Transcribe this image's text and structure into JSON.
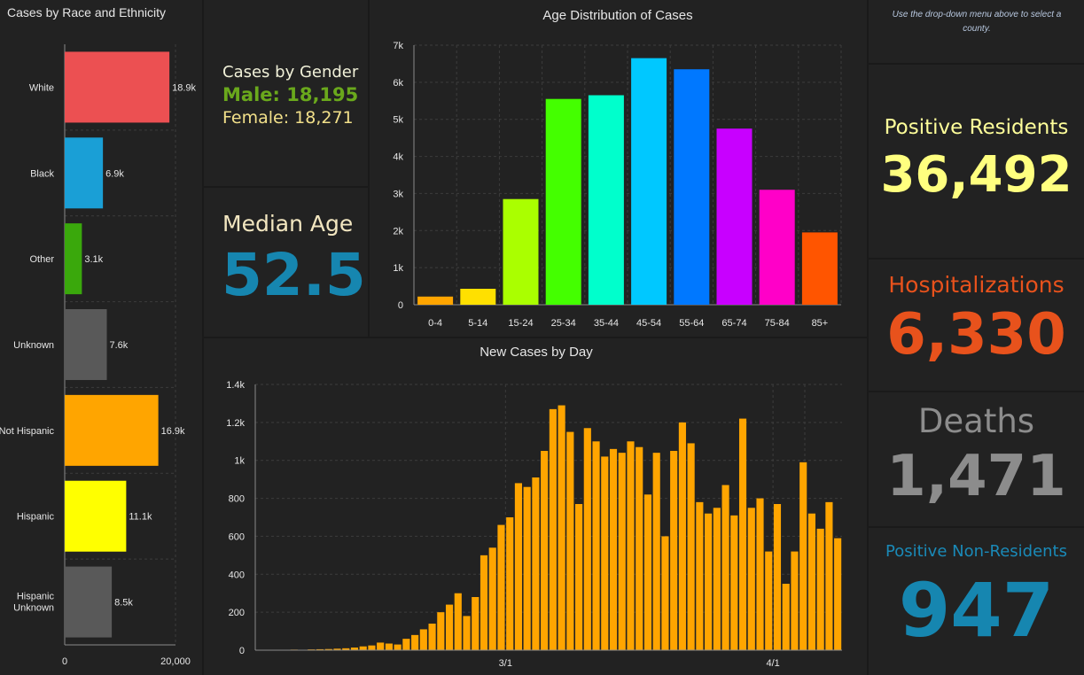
{
  "race_chart": {
    "title": "Cases by Race and Ethnicity",
    "type": "bar",
    "categories": [
      "White",
      "Black",
      "Other",
      "Unknown",
      "Not Hispanic",
      "Hispanic",
      "Hispanic Unknown"
    ],
    "values": [
      18900,
      6900,
      3100,
      7600,
      16900,
      11100,
      8500
    ],
    "value_labels": [
      "18.9k",
      "6.9k",
      "3.1k",
      "7.6k",
      "16.9k",
      "11.1k",
      "8.5k"
    ],
    "colors": [
      "#ec5052",
      "#1a9fd6",
      "#3aa80c",
      "#595959",
      "#ffa500",
      "#ffff00",
      "#595959"
    ],
    "xlim": [
      0,
      20000
    ],
    "x_ticks": [
      "0",
      "20,000"
    ]
  },
  "gender": {
    "title": "Cases by Gender",
    "male": "Male: 18,195",
    "female": "Female: 18,271"
  },
  "median_age": {
    "title": "Median Age",
    "value": "52.5"
  },
  "age_chart": {
    "title": "Age Distribution of Cases",
    "type": "bar",
    "categories": [
      "0-4",
      "5-14",
      "15-24",
      "25-34",
      "35-44",
      "45-54",
      "55-64",
      "65-74",
      "75-84",
      "85+"
    ],
    "values": [
      220,
      430,
      2850,
      5550,
      5650,
      6650,
      6350,
      4750,
      3100,
      1950
    ],
    "colors": [
      "#ffa500",
      "#ffe000",
      "#aaff00",
      "#44ff00",
      "#00ffcc",
      "#00c8ff",
      "#0078ff",
      "#c800ff",
      "#ff00c8",
      "#ff5500"
    ],
    "ylim": [
      0,
      7000
    ],
    "y_ticks": [
      "0",
      "1k",
      "2k",
      "3k",
      "4k",
      "5k",
      "6k",
      "7k"
    ]
  },
  "daily_chart": {
    "title": "New Cases by Day",
    "type": "bar",
    "color": "#ffa500",
    "values": [
      2,
      1,
      2,
      1,
      3,
      2,
      4,
      5,
      6,
      8,
      10,
      14,
      20,
      25,
      40,
      35,
      30,
      60,
      80,
      110,
      140,
      200,
      240,
      300,
      180,
      280,
      500,
      540,
      660,
      700,
      880,
      860,
      910,
      1050,
      1270,
      1290,
      1150,
      770,
      1170,
      1100,
      1020,
      1060,
      1040,
      1100,
      1070,
      820,
      1040,
      600,
      1050,
      1200,
      1090,
      780,
      720,
      750,
      870,
      710,
      1220,
      750,
      800,
      520,
      770,
      350,
      520,
      990,
      720,
      640,
      780,
      590
    ],
    "ylim": [
      0,
      1400
    ],
    "y_ticks": [
      "0",
      "200",
      "400",
      "600",
      "800",
      "1k",
      "1.2k",
      "1.4k"
    ],
    "x_ticks": [
      {
        "label": "3/1",
        "index": 29
      },
      {
        "label": "4/1",
        "index": 60
      }
    ]
  },
  "info": {
    "text": "Use the drop-down menu above to select a county."
  },
  "stats": {
    "positive_residents": {
      "title": "Positive Residents",
      "value": "36,492",
      "color": "#ffff7f"
    },
    "hospitalizations": {
      "title": "Hospitalizations",
      "value": "6,330",
      "color": "#e8521c"
    },
    "deaths": {
      "title": "Deaths",
      "value": "1,471",
      "color": "#8c8c8c"
    },
    "non_residents": {
      "title": "Positive Non-Residents",
      "value": "947",
      "color": "#1686b0"
    }
  }
}
